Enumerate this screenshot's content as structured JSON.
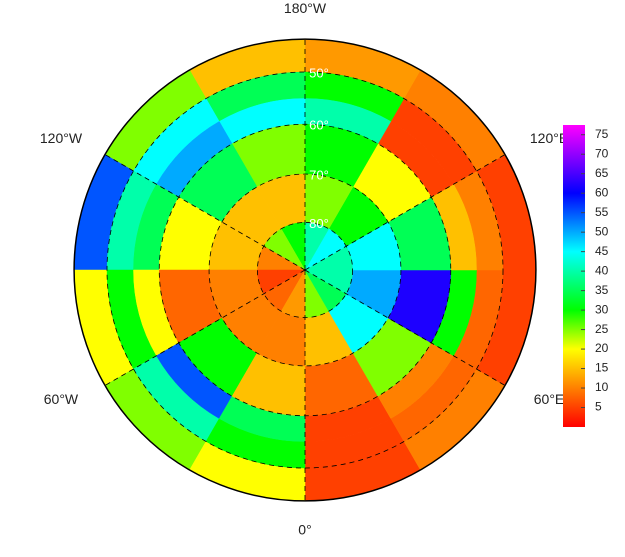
{
  "chart_data": {
    "type": "polar-map",
    "lat_edges": [
      44,
      50,
      55,
      60,
      70,
      80,
      90
    ],
    "lon_edges": [
      0,
      30,
      60,
      90,
      120,
      150,
      180,
      210,
      240,
      270,
      300,
      330,
      360
    ],
    "values": [
      [
        5,
        10,
        5,
        5,
        10,
        12,
        15,
        25,
        55,
        20,
        25,
        20
      ],
      [
        5,
        8,
        8,
        10,
        5,
        30,
        35,
        45,
        40,
        30,
        40,
        30
      ],
      [
        5,
        10,
        30,
        15,
        5,
        40,
        45,
        50,
        35,
        20,
        55,
        35
      ],
      [
        8,
        25,
        62,
        35,
        20,
        30,
        25,
        35,
        20,
        8,
        30,
        15
      ],
      [
        15,
        45,
        50,
        45,
        30,
        25,
        15,
        15,
        15,
        10,
        10,
        10
      ],
      [
        25,
        35,
        40,
        40,
        45,
        40,
        30,
        25,
        10,
        5,
        8,
        12
      ]
    ],
    "colormap": [
      [
        0,
        "#ff0000"
      ],
      [
        10,
        "#ff8000"
      ],
      [
        20,
        "#ffff00"
      ],
      [
        30,
        "#00ff00"
      ],
      [
        45,
        "#00ffff"
      ],
      [
        60,
        "#0000ff"
      ],
      [
        77.5,
        "#ff00ff"
      ]
    ],
    "clim": [
      0,
      77.5
    ],
    "cticks": [
      5,
      10,
      15,
      20,
      25,
      30,
      35,
      40,
      45,
      50,
      55,
      60,
      65,
      70,
      75
    ],
    "lat_labels": [
      {
        "value": 50,
        "label": "50°"
      },
      {
        "value": 60,
        "label": "60°"
      },
      {
        "value": 70,
        "label": "70°"
      },
      {
        "value": 80,
        "label": "80°"
      }
    ],
    "lon_labels": [
      {
        "value": 180,
        "label": "180°W"
      },
      {
        "value": 120,
        "label": "120°E"
      },
      {
        "value": 240,
        "label": "120°W"
      },
      {
        "value": 300,
        "label": "60°W"
      },
      {
        "value": 60,
        "label": "60°E"
      },
      {
        "value": 0,
        "label": "0°"
      }
    ]
  }
}
